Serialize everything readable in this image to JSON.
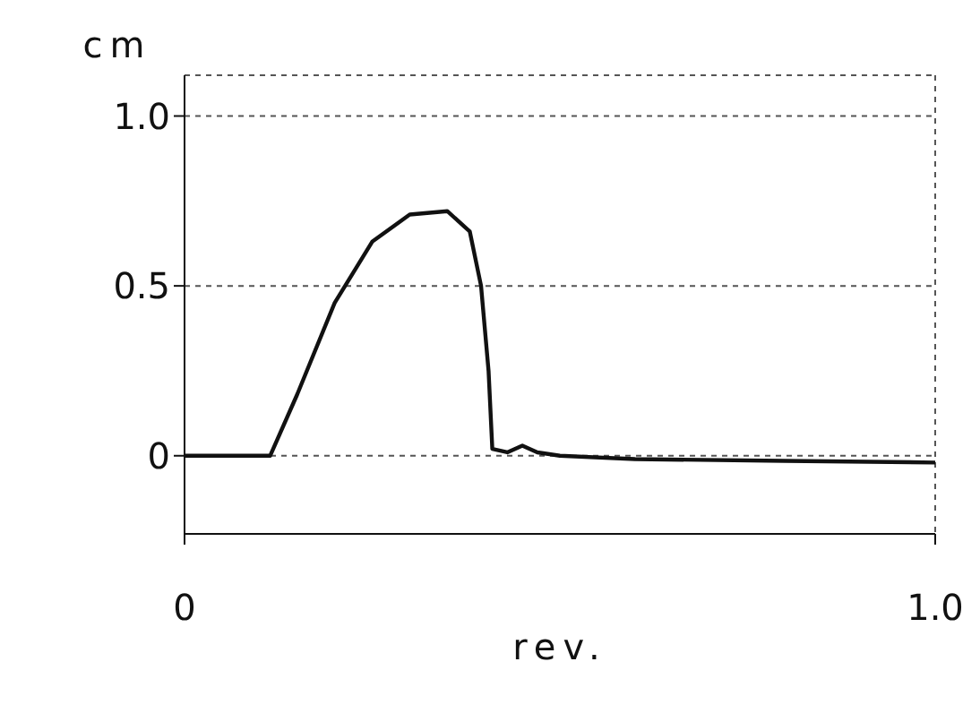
{
  "chart_data": {
    "type": "line",
    "xlabel": "rev.",
    "ylabel": "cm",
    "series": [
      {
        "color": "#111111",
        "x": [
          0,
          0.05,
          0.1,
          0.114,
          0.15,
          0.2,
          0.25,
          0.3,
          0.35,
          0.38,
          0.395,
          0.405,
          0.41,
          0.43,
          0.45,
          0.47,
          0.5,
          0.6,
          0.8,
          1.0
        ],
        "values": [
          0,
          0,
          0,
          0,
          0.18,
          0.45,
          0.63,
          0.71,
          0.72,
          0.66,
          0.5,
          0.25,
          0.02,
          0.01,
          0.03,
          0.01,
          0,
          -0.01,
          -0.015,
          -0.02
        ]
      }
    ],
    "xlim": [
      0,
      1.0
    ],
    "xticks": [
      0,
      {
        "value": 1.0,
        "label": "1.0"
      }
    ],
    "ylim": [
      -0.23,
      1.12
    ],
    "yticks": [
      0,
      0.5,
      {
        "value": 1.0,
        "label": "1.0"
      }
    ],
    "grid": true,
    "marker": "none",
    "line_style": "solid"
  }
}
